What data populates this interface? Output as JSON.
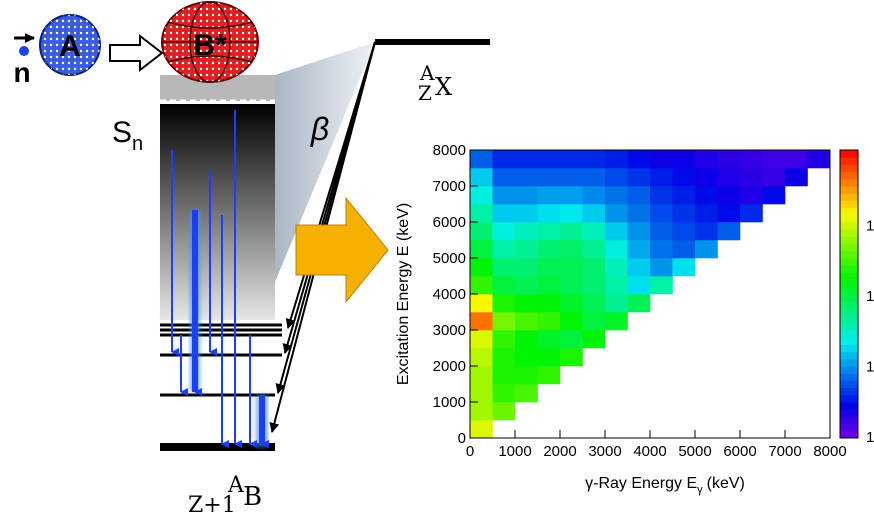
{
  "diagram": {
    "incoming": "n",
    "target": "A",
    "compound": "B*",
    "separation": "S",
    "separation_sub": "n",
    "decay": "β",
    "parent": {
      "mass": "A",
      "charge": "Z",
      "symbol": "X"
    },
    "daughter": {
      "mass": "A",
      "charge": "Z+1",
      "symbol": "B"
    }
  },
  "chart_data": {
    "type": "heatmap",
    "x_label": "γ-Ray Energy E",
    "x_label_sub": "γ",
    "x_label_unit": "(keV)",
    "y_label": "Excitation Energy E (keV)",
    "xlim": [
      0,
      8000
    ],
    "ylim": [
      0,
      8000
    ],
    "xticks": [
      0,
      1000,
      2000,
      3000,
      4000,
      5000,
      6000,
      7000,
      8000
    ],
    "yticks": [
      0,
      1000,
      2000,
      3000,
      4000,
      5000,
      6000,
      7000,
      8000
    ],
    "xbins": [
      0,
      500,
      1000,
      1500,
      2000,
      2500,
      3000,
      3500,
      4000,
      4500,
      5000,
      5500,
      6000,
      6500,
      7000,
      7500,
      8000
    ],
    "ybins": [
      0,
      500,
      1000,
      1500,
      2000,
      2500,
      3000,
      3500,
      4000,
      4500,
      5000,
      5500,
      6000,
      6500,
      7000,
      7500,
      8000
    ],
    "zlim": [
      0,
      1
    ],
    "colorbar_labels": [
      "1",
      "1",
      "1",
      "1"
    ],
    "z": [
      [
        0.75
      ],
      [
        0.7,
        0.65
      ],
      [
        0.7,
        0.6,
        0.62
      ],
      [
        0.7,
        0.58,
        0.58,
        0.6
      ],
      [
        0.72,
        0.58,
        0.55,
        0.55,
        0.58
      ],
      [
        0.75,
        0.6,
        0.55,
        0.52,
        0.5,
        0.55
      ],
      [
        0.9,
        0.66,
        0.62,
        0.6,
        0.55,
        0.5,
        0.52
      ],
      [
        0.78,
        0.58,
        0.55,
        0.55,
        0.52,
        0.48,
        0.42,
        0.48
      ],
      [
        0.6,
        0.5,
        0.48,
        0.5,
        0.48,
        0.45,
        0.4,
        0.32,
        0.4
      ],
      [
        0.55,
        0.45,
        0.45,
        0.48,
        0.48,
        0.45,
        0.38,
        0.3,
        0.25,
        0.32
      ],
      [
        0.5,
        0.4,
        0.42,
        0.45,
        0.46,
        0.42,
        0.35,
        0.27,
        0.22,
        0.2,
        0.25
      ],
      [
        0.45,
        0.35,
        0.38,
        0.4,
        0.42,
        0.38,
        0.3,
        0.25,
        0.2,
        0.18,
        0.16,
        0.2
      ],
      [
        0.4,
        0.3,
        0.3,
        0.32,
        0.33,
        0.3,
        0.25,
        0.22,
        0.18,
        0.16,
        0.14,
        0.12,
        0.15
      ],
      [
        0.35,
        0.25,
        0.25,
        0.26,
        0.26,
        0.24,
        0.22,
        0.2,
        0.16,
        0.14,
        0.12,
        0.1,
        0.08,
        0.12
      ],
      [
        0.3,
        0.2,
        0.2,
        0.2,
        0.2,
        0.2,
        0.18,
        0.16,
        0.14,
        0.12,
        0.1,
        0.08,
        0.07,
        0.06,
        0.1
      ],
      [
        0.2,
        0.15,
        0.15,
        0.15,
        0.15,
        0.15,
        0.14,
        0.12,
        0.1,
        0.1,
        0.08,
        0.07,
        0.06,
        0.05,
        0.05,
        0.08
      ]
    ]
  }
}
